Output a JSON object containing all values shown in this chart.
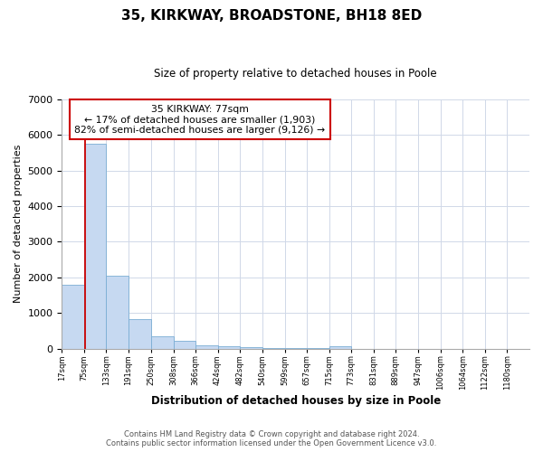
{
  "title": "35, KIRKWAY, BROADSTONE, BH18 8ED",
  "subtitle": "Size of property relative to detached houses in Poole",
  "xlabel": "Distribution of detached houses by size in Poole",
  "ylabel": "Number of detached properties",
  "bin_labels": [
    "17sqm",
    "75sqm",
    "133sqm",
    "191sqm",
    "250sqm",
    "308sqm",
    "366sqm",
    "424sqm",
    "482sqm",
    "540sqm",
    "599sqm",
    "657sqm",
    "715sqm",
    "773sqm",
    "831sqm",
    "889sqm",
    "947sqm",
    "1006sqm",
    "1064sqm",
    "1122sqm",
    "1180sqm"
  ],
  "bar_heights": [
    1780,
    5750,
    2050,
    820,
    350,
    210,
    100,
    65,
    40,
    25,
    15,
    8,
    60,
    0,
    0,
    0,
    0,
    0,
    0,
    0,
    0
  ],
  "bar_color": "#c6d9f1",
  "bar_edge_color": "#7aadd4",
  "annotation_line1": "35 KIRKWAY: 77sqm",
  "annotation_line2": "← 17% of detached houses are smaller (1,903)",
  "annotation_line3": "82% of semi-detached houses are larger (9,126) →",
  "annotation_box_color": "#ffffff",
  "annotation_box_edge": "#cc0000",
  "vline_color": "#cc0000",
  "vline_x_bin": 1,
  "ylim": [
    0,
    7000
  ],
  "yticks": [
    0,
    1000,
    2000,
    3000,
    4000,
    5000,
    6000,
    7000
  ],
  "footer_line1": "Contains HM Land Registry data © Crown copyright and database right 2024.",
  "footer_line2": "Contains public sector information licensed under the Open Government Licence v3.0.",
  "bin_edges": [
    17,
    75,
    133,
    191,
    250,
    308,
    366,
    424,
    482,
    540,
    599,
    657,
    715,
    773,
    831,
    889,
    947,
    1006,
    1064,
    1122,
    1180,
    1238
  ]
}
